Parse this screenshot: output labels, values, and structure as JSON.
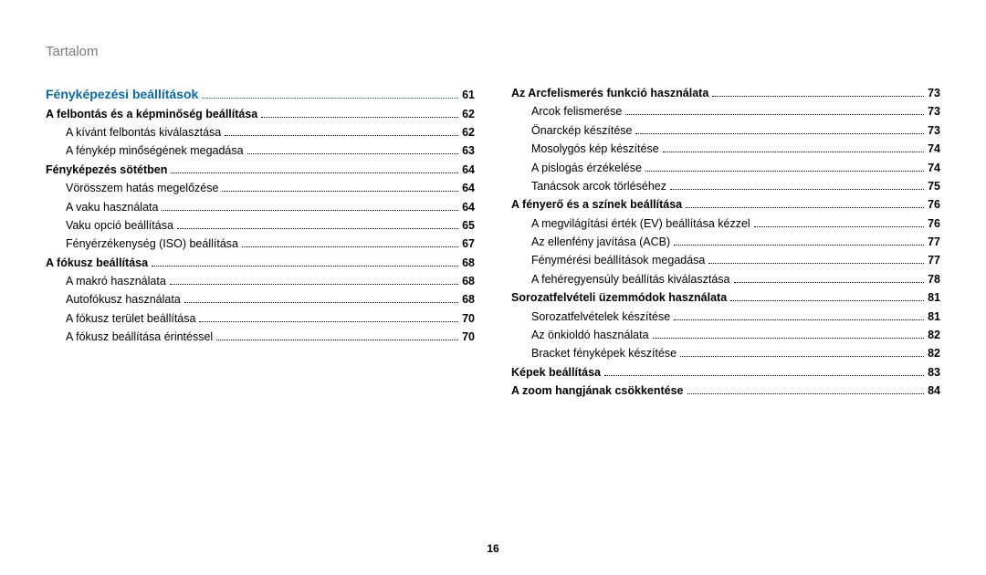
{
  "header": "Tartalom",
  "pageNumber": "16",
  "colors": {
    "headerText": "#7a7a7a",
    "sectionTitle": "#0a6aa6",
    "text": "#000000",
    "background": "#ffffff"
  },
  "leftColumn": [
    {
      "level": "section-title",
      "label": "Fényképezési beállítások",
      "page": "61"
    },
    {
      "level": "lvl1",
      "label": "A felbontás és a képminőség beállítása",
      "page": "62"
    },
    {
      "level": "lvl2",
      "label": "A kívánt felbontás kiválasztása",
      "page": "62"
    },
    {
      "level": "lvl2",
      "label": "A fénykép minőségének megadása",
      "page": "63"
    },
    {
      "level": "lvl1",
      "label": "Fényképezés sötétben",
      "page": "64"
    },
    {
      "level": "lvl2",
      "label": "Vörösszem hatás megelőzése",
      "page": "64"
    },
    {
      "level": "lvl2",
      "label": "A vaku használata",
      "page": "64"
    },
    {
      "level": "lvl2",
      "label": "Vaku opció beállítása",
      "page": "65"
    },
    {
      "level": "lvl2",
      "label": "Fényérzékenység (ISO) beállítása",
      "page": "67"
    },
    {
      "level": "lvl1",
      "label": "A fókusz beállítása",
      "page": "68"
    },
    {
      "level": "lvl2",
      "label": "A makró használata",
      "page": "68"
    },
    {
      "level": "lvl2",
      "label": "Autofókusz használata",
      "page": "68"
    },
    {
      "level": "lvl2",
      "label": "A fókusz terület beállítása",
      "page": "70"
    },
    {
      "level": "lvl2",
      "label": "A fókusz beállítása érintéssel",
      "page": "70"
    }
  ],
  "rightColumn": [
    {
      "level": "lvl1",
      "label": "Az Arcfelismerés funkció használata",
      "page": "73"
    },
    {
      "level": "lvl2",
      "label": "Arcok felismerése",
      "page": "73"
    },
    {
      "level": "lvl2",
      "label": "Önarckép készítése",
      "page": "73"
    },
    {
      "level": "lvl2",
      "label": "Mosolygós kép készítése",
      "page": "74"
    },
    {
      "level": "lvl2",
      "label": "A pislogás érzékelése",
      "page": "74"
    },
    {
      "level": "lvl2",
      "label": "Tanácsok arcok törléséhez",
      "page": "75"
    },
    {
      "level": "lvl1",
      "label": "A fényerő és a színek beállítása",
      "page": "76"
    },
    {
      "level": "lvl2",
      "label": "A megvilágítási érték (EV) beállítása kézzel",
      "page": "76"
    },
    {
      "level": "lvl2",
      "label": "Az ellenfény javítása (ACB)",
      "page": "77"
    },
    {
      "level": "lvl2",
      "label": "Fénymérési beállítások megadása",
      "page": "77"
    },
    {
      "level": "lvl2",
      "label": "A fehéregyensúly beállítás kiválasztása",
      "page": "78"
    },
    {
      "level": "lvl1",
      "label": "Sorozatfelvételi üzemmódok használata",
      "page": "81"
    },
    {
      "level": "lvl2",
      "label": "Sorozatfelvételek készítése",
      "page": "81"
    },
    {
      "level": "lvl2",
      "label": "Az önkioldó használata",
      "page": "82"
    },
    {
      "level": "lvl2",
      "label": "Bracket fényképek készítése",
      "page": "82"
    },
    {
      "level": "lvl1",
      "label": "Képek beállítása",
      "page": "83"
    },
    {
      "level": "lvl1",
      "label": "A zoom hangjának csökkentése",
      "page": "84"
    }
  ]
}
